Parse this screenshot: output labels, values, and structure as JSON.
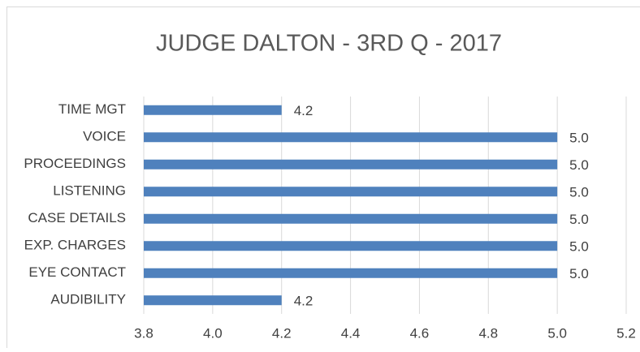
{
  "chart_data": {
    "type": "bar",
    "orientation": "horizontal",
    "title": "JUDGE DALTON - 3RD Q - 2017",
    "categories": [
      "TIME MGT",
      "VOICE",
      "PROCEEDINGS",
      "LISTENING",
      "CASE DETAILS",
      "EXP. CHARGES",
      "EYE CONTACT",
      "AUDIBILITY"
    ],
    "values": [
      4.2,
      5.0,
      5.0,
      5.0,
      5.0,
      5.0,
      5.0,
      4.2
    ],
    "value_labels": [
      "4.2",
      "5.0",
      "5.0",
      "5.0",
      "5.0",
      "5.0",
      "5.0",
      "4.2"
    ],
    "color": "#4f81bd",
    "xlim": [
      3.8,
      5.2
    ],
    "xticks": [
      3.8,
      {
        "value": 4,
        "label": "4.0"
      },
      4.2,
      4.4,
      4.6,
      4.8,
      {
        "value": 5,
        "label": "5.0"
      },
      5.2
    ],
    "grid": true
  }
}
